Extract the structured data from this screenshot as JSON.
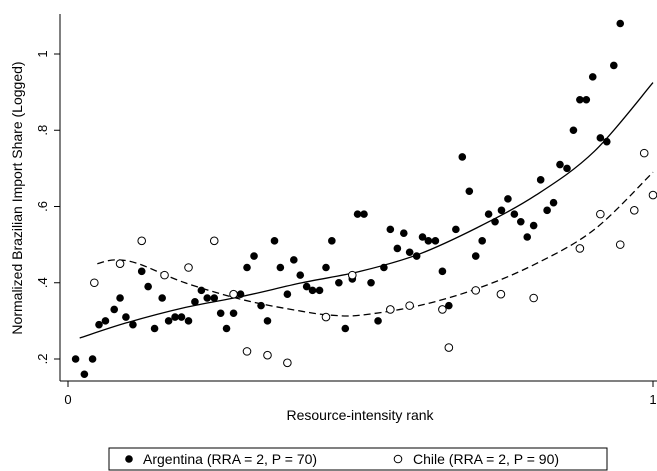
{
  "chart_data": {
    "type": "scatter",
    "title": "",
    "xlabel": "Resource-intensity rank",
    "ylabel": "Normalized Brazilian Import Share (Logged)",
    "xlim": [
      0,
      1
    ],
    "ylim": [
      0.15,
      1.1
    ],
    "x_ticks": [
      {
        "value": 0,
        "label": "0"
      },
      {
        "value": 1,
        "label": "1"
      }
    ],
    "y_ticks": [
      {
        "value": 0.2,
        "label": ".2"
      },
      {
        "value": 0.4,
        "label": ".4"
      },
      {
        "value": 0.6,
        "label": ".6"
      },
      {
        "value": 0.8,
        "label": ".8"
      },
      {
        "value": 1.0,
        "label": "1"
      }
    ],
    "grid": false,
    "legend_position": "bottom",
    "series": [
      {
        "name": "Argentina (RRA = 2, P = 70)",
        "marker": "filled-circle",
        "color": "#000000",
        "points": [
          [
            0.013,
            0.2
          ],
          [
            0.028,
            0.16
          ],
          [
            0.042,
            0.2
          ],
          [
            0.053,
            0.29
          ],
          [
            0.064,
            0.3
          ],
          [
            0.079,
            0.33
          ],
          [
            0.089,
            0.36
          ],
          [
            0.099,
            0.31
          ],
          [
            0.111,
            0.29
          ],
          [
            0.126,
            0.43
          ],
          [
            0.137,
            0.39
          ],
          [
            0.148,
            0.28
          ],
          [
            0.161,
            0.36
          ],
          [
            0.172,
            0.3
          ],
          [
            0.183,
            0.31
          ],
          [
            0.194,
            0.31
          ],
          [
            0.206,
            0.3
          ],
          [
            0.217,
            0.35
          ],
          [
            0.228,
            0.38
          ],
          [
            0.238,
            0.36
          ],
          [
            0.25,
            0.36
          ],
          [
            0.261,
            0.32
          ],
          [
            0.271,
            0.28
          ],
          [
            0.283,
            0.32
          ],
          [
            0.295,
            0.37
          ],
          [
            0.306,
            0.44
          ],
          [
            0.318,
            0.47
          ],
          [
            0.33,
            0.34
          ],
          [
            0.341,
            0.3
          ],
          [
            0.353,
            0.51
          ],
          [
            0.363,
            0.44
          ],
          [
            0.375,
            0.37
          ],
          [
            0.386,
            0.46
          ],
          [
            0.397,
            0.42
          ],
          [
            0.408,
            0.39
          ],
          [
            0.418,
            0.38
          ],
          [
            0.43,
            0.38
          ],
          [
            0.441,
            0.44
          ],
          [
            0.451,
            0.51
          ],
          [
            0.463,
            0.4
          ],
          [
            0.474,
            0.28
          ],
          [
            0.486,
            0.41
          ],
          [
            0.495,
            0.58
          ],
          [
            0.506,
            0.58
          ],
          [
            0.518,
            0.4
          ],
          [
            0.53,
            0.3
          ],
          [
            0.54,
            0.44
          ],
          [
            0.551,
            0.54
          ],
          [
            0.563,
            0.49
          ],
          [
            0.574,
            0.53
          ],
          [
            0.584,
            0.48
          ],
          [
            0.596,
            0.47
          ],
          [
            0.606,
            0.52
          ],
          [
            0.616,
            0.51
          ],
          [
            0.628,
            0.51
          ],
          [
            0.64,
            0.43
          ],
          [
            0.651,
            0.34
          ],
          [
            0.663,
            0.54
          ],
          [
            0.674,
            0.73
          ],
          [
            0.686,
            0.64
          ],
          [
            0.697,
            0.47
          ],
          [
            0.708,
            0.51
          ],
          [
            0.719,
            0.58
          ],
          [
            0.73,
            0.56
          ],
          [
            0.741,
            0.59
          ],
          [
            0.752,
            0.62
          ],
          [
            0.763,
            0.58
          ],
          [
            0.774,
            0.56
          ],
          [
            0.785,
            0.52
          ],
          [
            0.796,
            0.55
          ],
          [
            0.808,
            0.67
          ],
          [
            0.819,
            0.59
          ],
          [
            0.83,
            0.61
          ],
          [
            0.841,
            0.71
          ],
          [
            0.853,
            0.7
          ],
          [
            0.864,
            0.8
          ],
          [
            0.875,
            0.88
          ],
          [
            0.886,
            0.88
          ],
          [
            0.897,
            0.94
          ],
          [
            0.91,
            0.78
          ],
          [
            0.921,
            0.77
          ],
          [
            0.933,
            0.97
          ],
          [
            0.944,
            1.08
          ]
        ]
      },
      {
        "name": "Chile (RRA = 2, P = 90)",
        "marker": "hollow-circle",
        "color": "#000000",
        "points": [
          [
            0.045,
            0.4
          ],
          [
            0.089,
            0.45
          ],
          [
            0.126,
            0.51
          ],
          [
            0.165,
            0.42
          ],
          [
            0.206,
            0.44
          ],
          [
            0.25,
            0.51
          ],
          [
            0.283,
            0.37
          ],
          [
            0.306,
            0.22
          ],
          [
            0.341,
            0.21
          ],
          [
            0.375,
            0.19
          ],
          [
            0.441,
            0.31
          ],
          [
            0.486,
            0.42
          ],
          [
            0.551,
            0.33
          ],
          [
            0.584,
            0.34
          ],
          [
            0.64,
            0.33
          ],
          [
            0.651,
            0.23
          ],
          [
            0.697,
            0.38
          ],
          [
            0.74,
            0.37
          ],
          [
            0.796,
            0.36
          ],
          [
            0.875,
            0.49
          ],
          [
            0.91,
            0.58
          ],
          [
            0.944,
            0.5
          ],
          [
            0.968,
            0.59
          ],
          [
            0.985,
            0.74
          ],
          [
            1.0,
            0.63
          ]
        ]
      }
    ],
    "fit_lines": [
      {
        "for": "Argentina (RRA = 2, P = 70)",
        "style": "solid",
        "x": [
          0.02,
          0.1,
          0.2,
          0.3,
          0.4,
          0.5,
          0.6,
          0.7,
          0.8,
          0.9,
          1.0
        ],
        "y": [
          0.255,
          0.295,
          0.335,
          0.365,
          0.4,
          0.43,
          0.475,
          0.545,
          0.63,
          0.745,
          0.925
        ]
      },
      {
        "for": "Chile (RRA = 2, P = 90)",
        "style": "dashed",
        "x": [
          0.05,
          0.08,
          0.12,
          0.2,
          0.3,
          0.4,
          0.45,
          0.5,
          0.6,
          0.7,
          0.8,
          0.9,
          1.0
        ],
        "y": [
          0.45,
          0.46,
          0.45,
          0.4,
          0.355,
          0.325,
          0.315,
          0.315,
          0.34,
          0.385,
          0.45,
          0.54,
          0.69
        ]
      }
    ]
  }
}
